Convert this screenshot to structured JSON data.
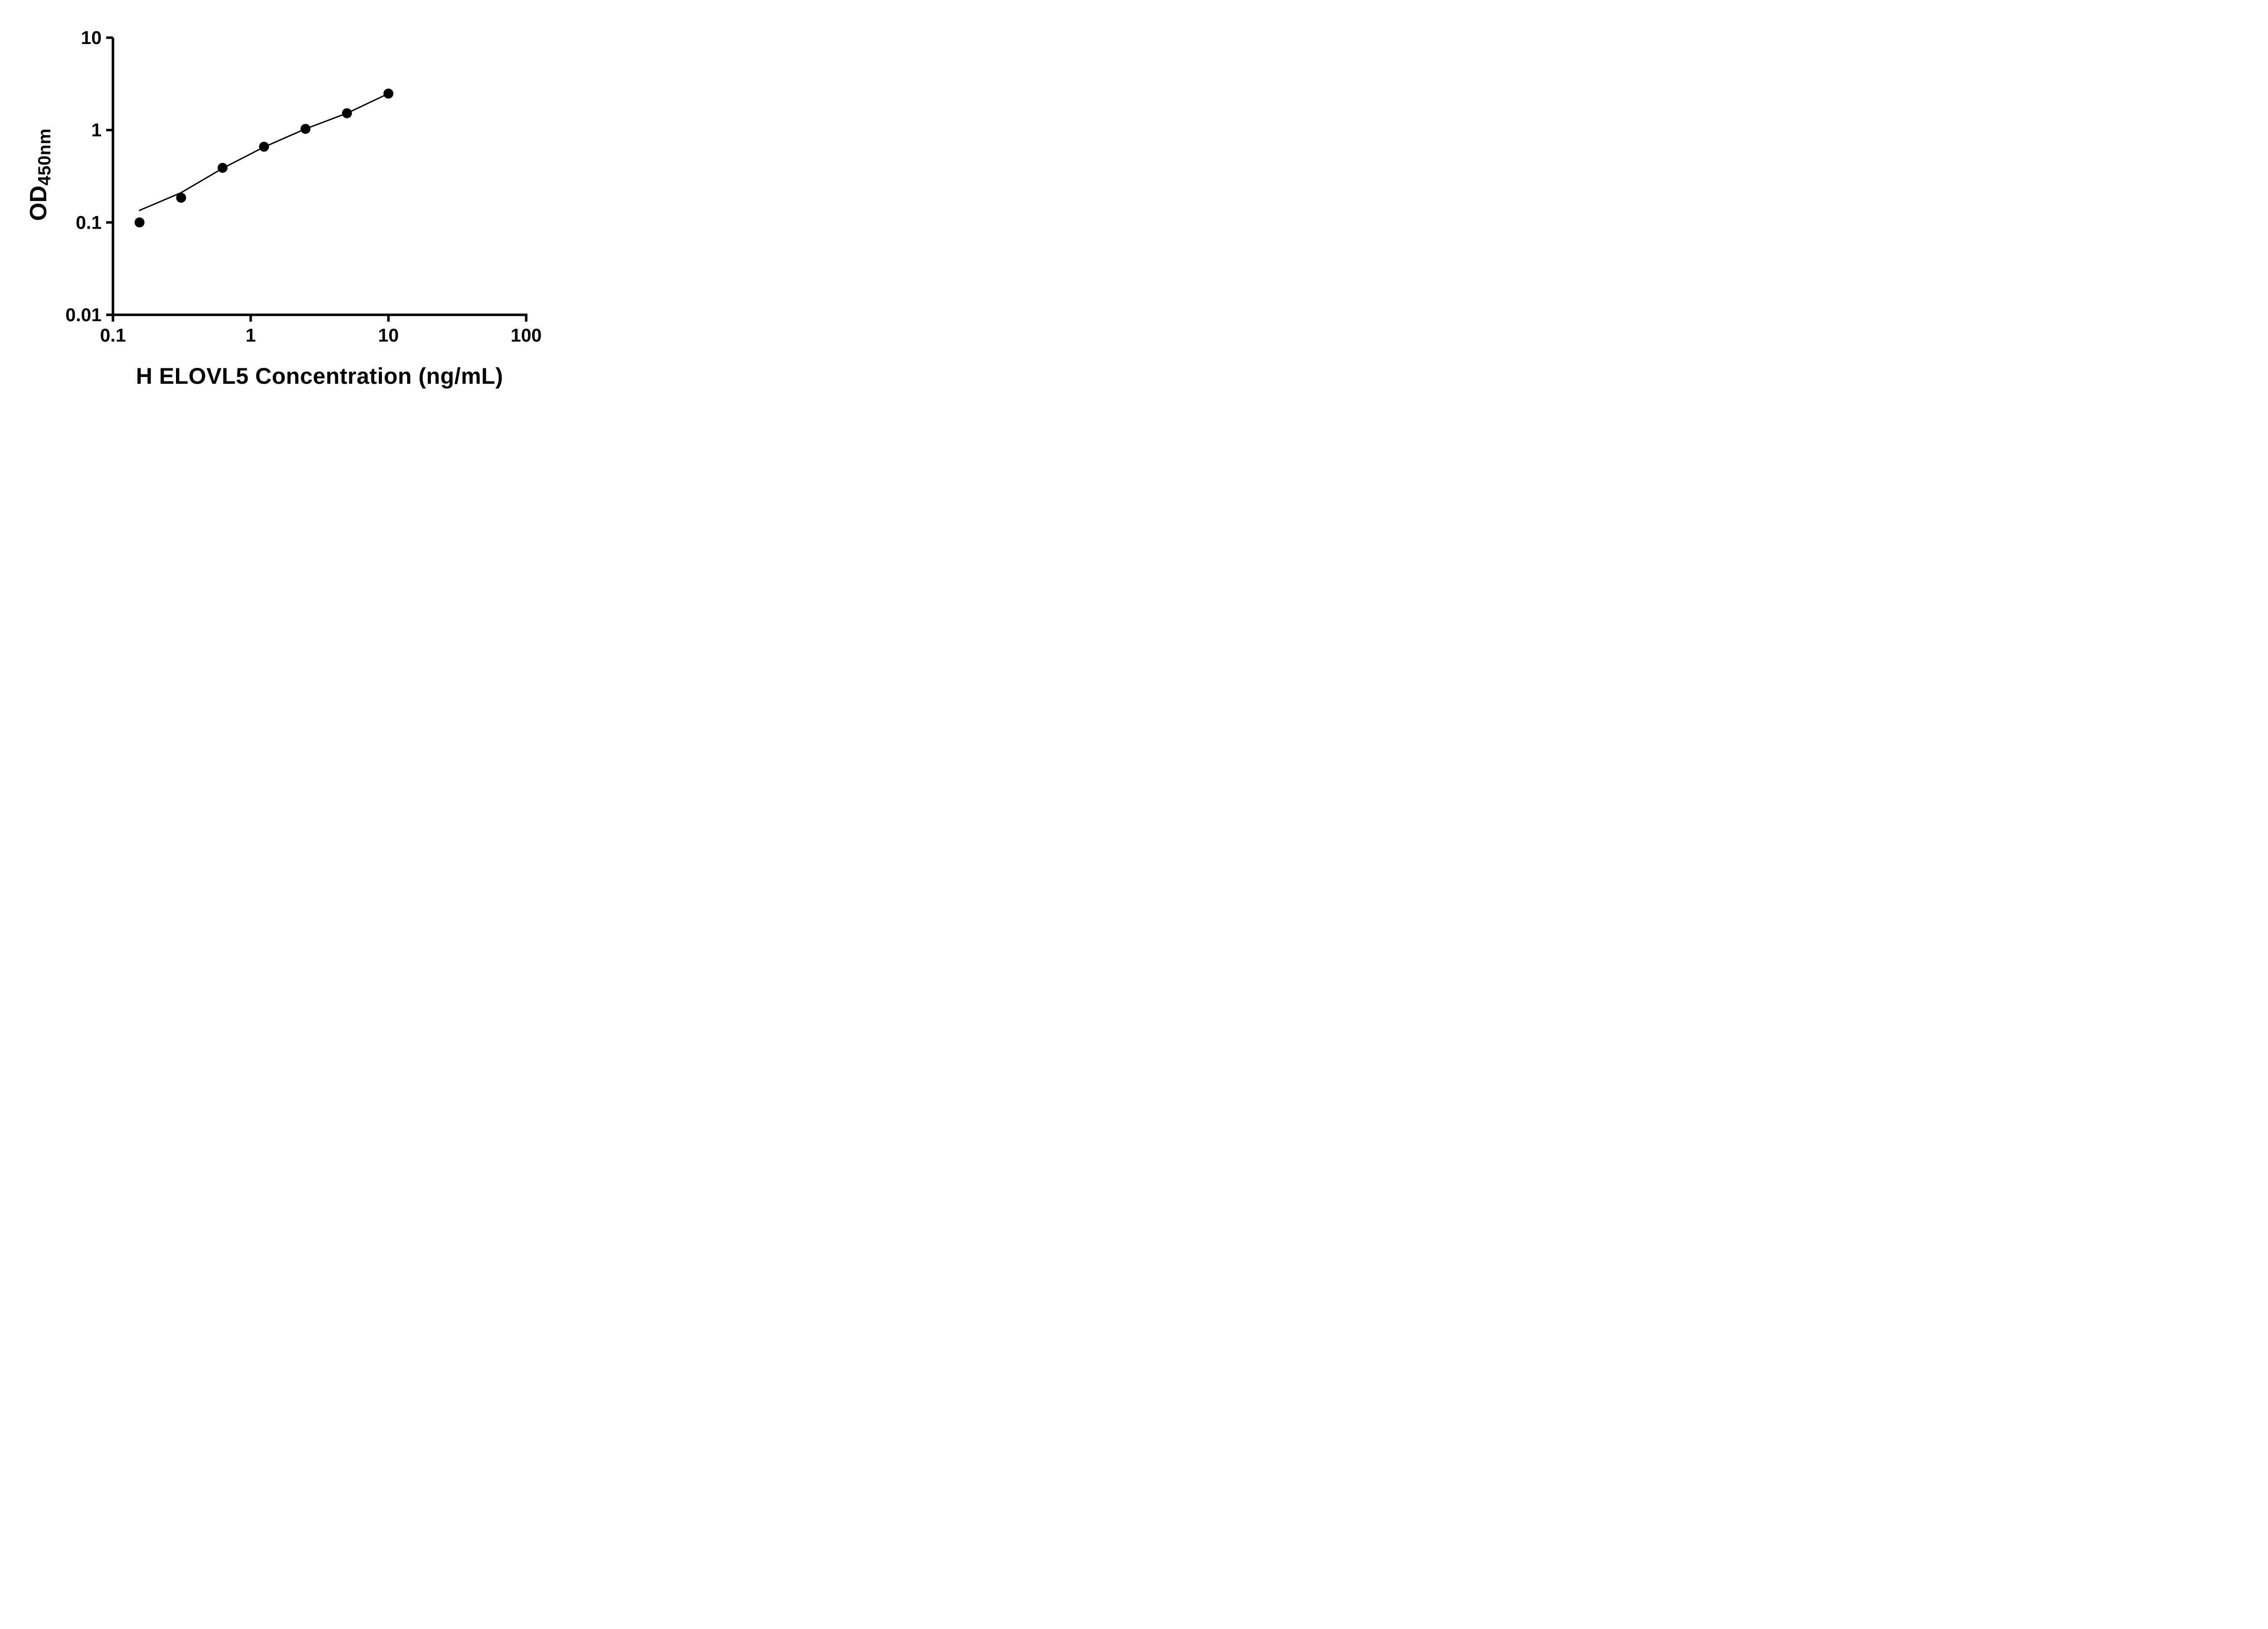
{
  "figure": {
    "background": "#ffffff",
    "axis_color": "#000000",
    "point_color": "#000000",
    "line_color": "#000000",
    "text_color": "#000000"
  },
  "chart_data": {
    "type": "scatter",
    "title": "",
    "xlabel": "H ELOVL5 Concentration (ng/mL)",
    "ylabel": "OD450nm",
    "ylabel_base": "OD",
    "ylabel_subscript": "450nm",
    "x_scale": "log10",
    "y_scale": "log10",
    "xlim": [
      0.1,
      100
    ],
    "ylim": [
      0.01,
      10
    ],
    "x_ticks": [
      0.1,
      1,
      10,
      100
    ],
    "x_tick_labels": [
      "0.1",
      "1",
      "10",
      "100"
    ],
    "y_ticks": [
      0.01,
      0.1,
      1,
      10
    ],
    "y_tick_labels": [
      "0.01",
      "0.1",
      "1",
      "10"
    ],
    "grid": false,
    "legend": "none",
    "series": [
      {
        "name": "standard-curve-points",
        "type": "scatter",
        "marker": "filled-circle",
        "x": [
          0.156,
          0.3125,
          0.625,
          1.25,
          2.5,
          5,
          10
        ],
        "y": [
          0.1,
          0.185,
          0.39,
          0.66,
          1.03,
          1.52,
          2.48
        ]
      },
      {
        "name": "fit-line",
        "type": "line",
        "x": [
          0.156,
          0.3125,
          0.625,
          1.25,
          2.5,
          5,
          10
        ],
        "y": [
          0.135,
          0.21,
          0.385,
          0.655,
          1.03,
          1.52,
          2.48
        ]
      }
    ]
  }
}
